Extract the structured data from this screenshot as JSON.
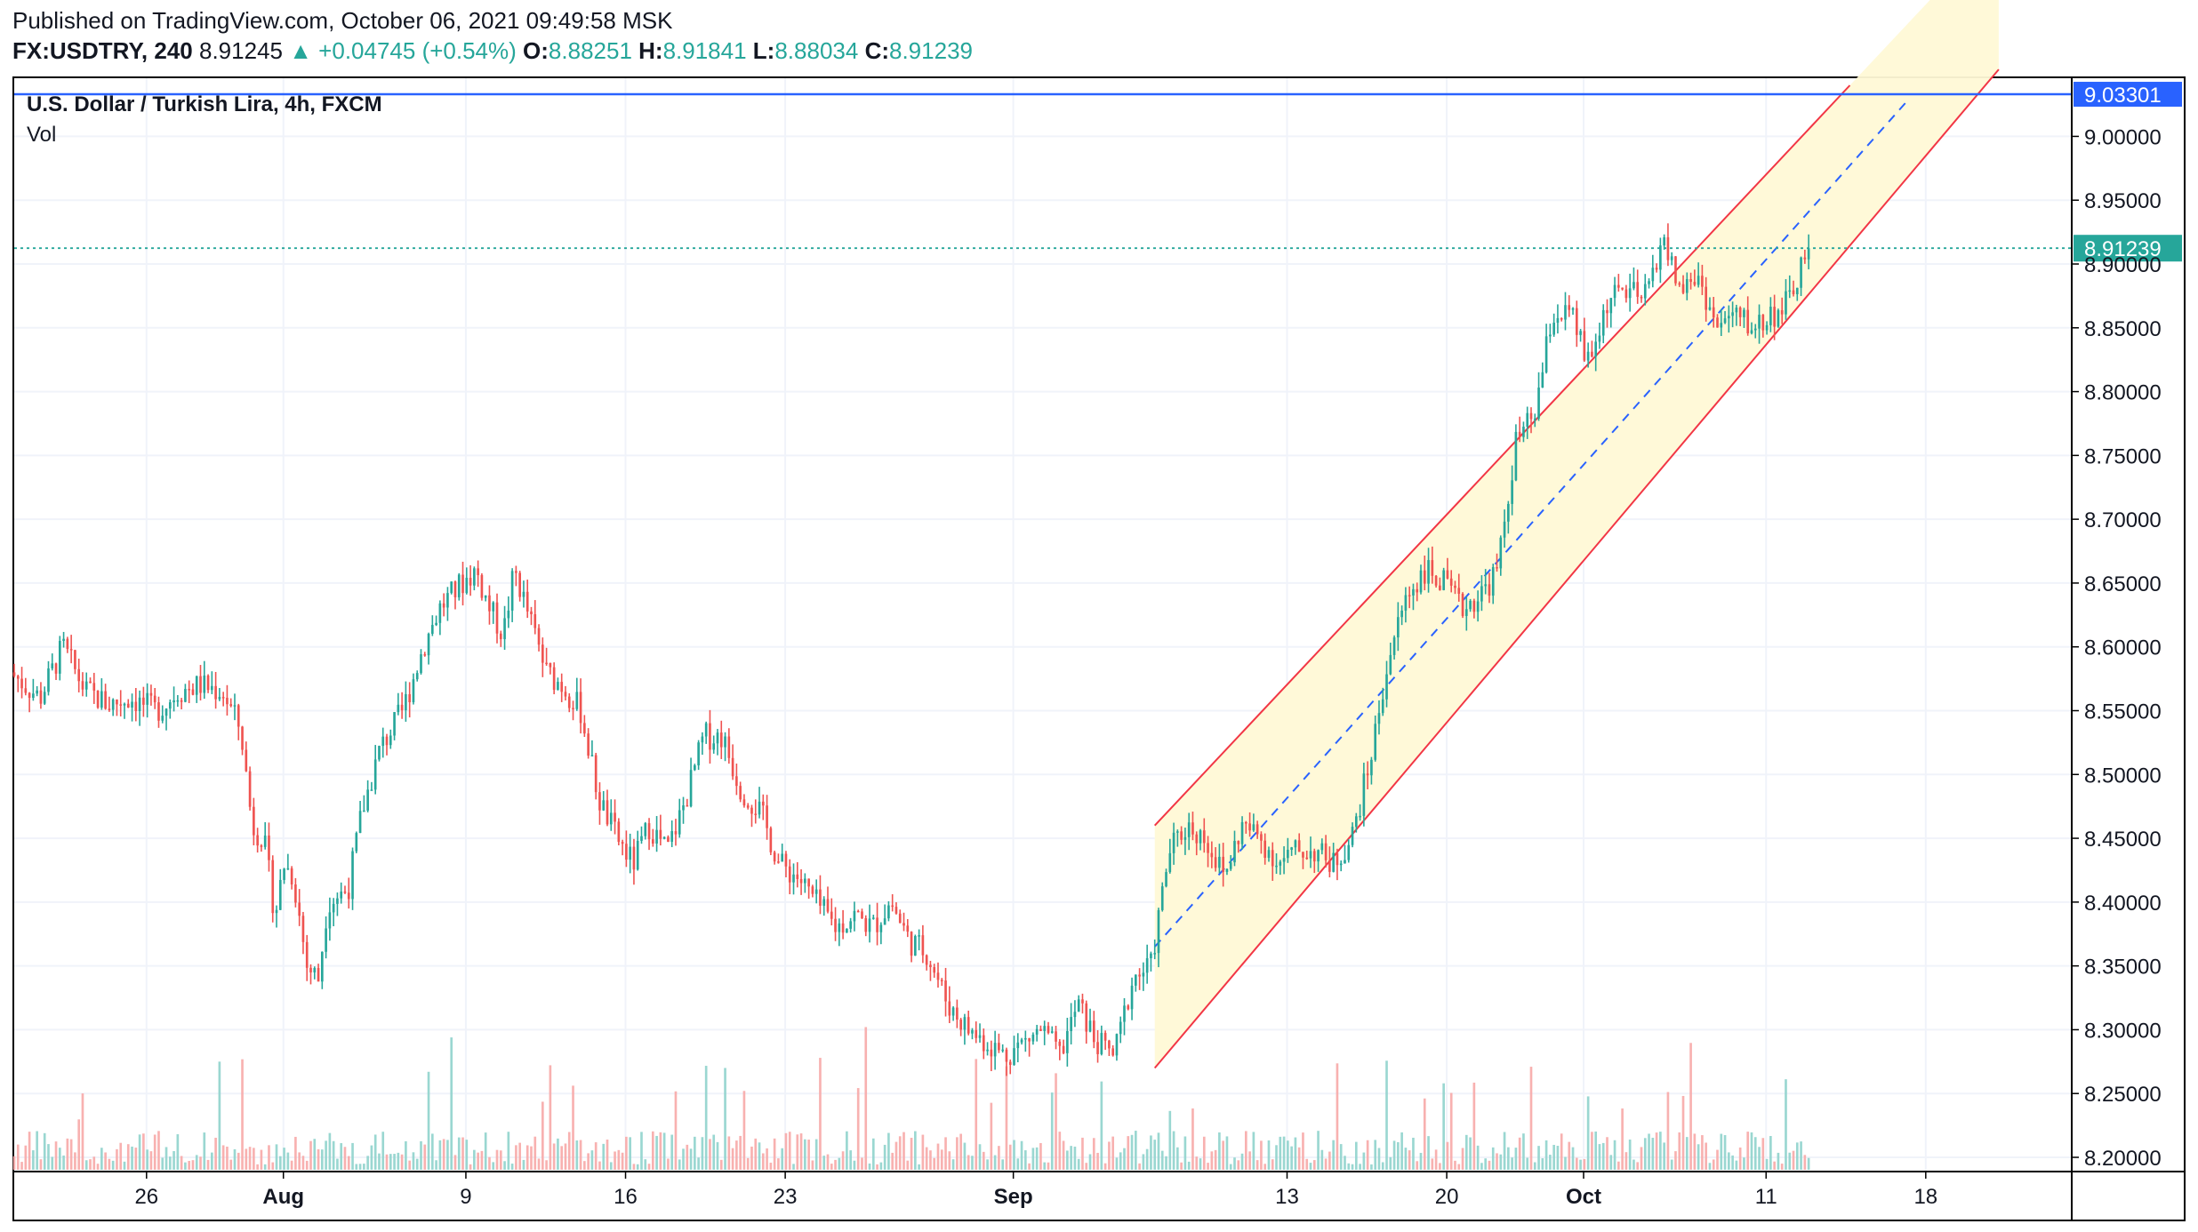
{
  "header": {
    "published": "Published on TradingView.com, October 06, 2021 09:49:58 MSK",
    "symbol": "FX:USDTRY, 240",
    "last": "8.91245",
    "change": "▲ +0.04745 (+0.54%)",
    "o_label": "O:",
    "o_value": "8.88251",
    "h_label": "H:",
    "h_value": "8.91841",
    "l_label": "L:",
    "l_value": "8.88034",
    "c_label": "C:",
    "c_value": "8.91239"
  },
  "legend": {
    "title": "U.S. Dollar / Turkish Lira, 4h, FXCM",
    "volume": "Vol"
  },
  "colors": {
    "up": "#26a69a",
    "down": "#ef5350",
    "channel": "#f23645",
    "median": "#2962ff",
    "fill": "#fff9d6",
    "alert": "#2962ff",
    "last": "#26a69a"
  },
  "chart_data": {
    "type": "candlestick",
    "y_axis": {
      "min": 8.2,
      "max": 9.04,
      "ticks": [
        "8.20000",
        "8.25000",
        "8.30000",
        "8.35000",
        "8.40000",
        "8.45000",
        "8.50000",
        "8.55000",
        "8.60000",
        "8.65000",
        "8.70000",
        "8.75000",
        "8.80000",
        "8.85000",
        "8.90000",
        "8.95000",
        "9.00000"
      ],
      "position": "right"
    },
    "x_axis": {
      "ticks": [
        {
          "label": "26",
          "day": 0
        },
        {
          "label": "Aug",
          "day": 6
        },
        {
          "label": "9",
          "day": 14
        },
        {
          "label": "16",
          "day": 21
        },
        {
          "label": "23",
          "day": 28
        },
        {
          "label": "Sep",
          "day": 38
        },
        {
          "label": "13",
          "day": 50
        },
        {
          "label": "20",
          "day": 57
        },
        {
          "label": "Oct",
          "day": 63
        },
        {
          "label": "11",
          "day": 71
        },
        {
          "label": "18",
          "day": 78
        }
      ],
      "start_date": "2021-07-26",
      "domain_days": [
        -5.8,
        84.4
      ]
    },
    "price_path": [
      [
        -5.8,
        8.58
      ],
      [
        -4.5,
        8.56
      ],
      [
        -3.5,
        8.6
      ],
      [
        -2.5,
        8.565
      ],
      [
        -1.5,
        8.555
      ],
      [
        -0.5,
        8.56
      ],
      [
        0.5,
        8.55
      ],
      [
        1.0,
        8.555
      ],
      [
        1.5,
        8.565
      ],
      [
        2.5,
        8.57
      ],
      [
        3.5,
        8.565
      ],
      [
        4.3,
        8.535
      ],
      [
        4.8,
        8.46
      ],
      [
        5.3,
        8.45
      ],
      [
        5.8,
        8.39
      ],
      [
        6.2,
        8.43
      ],
      [
        6.6,
        8.42
      ],
      [
        7.2,
        8.35
      ],
      [
        7.7,
        8.34
      ],
      [
        8.1,
        8.4
      ],
      [
        9.0,
        8.41
      ],
      [
        9.6,
        8.47
      ],
      [
        10.4,
        8.52
      ],
      [
        11.4,
        8.55
      ],
      [
        12.3,
        8.6
      ],
      [
        13.0,
        8.63
      ],
      [
        14.0,
        8.65
      ],
      [
        14.6,
        8.66
      ],
      [
        15.2,
        8.63
      ],
      [
        15.8,
        8.61
      ],
      [
        16.3,
        8.66
      ],
      [
        17.0,
        8.62
      ],
      [
        17.7,
        8.58
      ],
      [
        18.4,
        8.57
      ],
      [
        19.2,
        8.55
      ],
      [
        20.0,
        8.48
      ],
      [
        20.8,
        8.45
      ],
      [
        21.5,
        8.43
      ],
      [
        22.2,
        8.46
      ],
      [
        23.0,
        8.44
      ],
      [
        23.8,
        8.48
      ],
      [
        24.6,
        8.53
      ],
      [
        25.4,
        8.53
      ],
      [
        26.2,
        8.49
      ],
      [
        27.1,
        8.47
      ],
      [
        27.9,
        8.43
      ],
      [
        28.7,
        8.42
      ],
      [
        29.5,
        8.4
      ],
      [
        30.4,
        8.38
      ],
      [
        31.2,
        8.39
      ],
      [
        32.0,
        8.38
      ],
      [
        32.8,
        8.4
      ],
      [
        33.6,
        8.37
      ],
      [
        34.4,
        8.36
      ],
      [
        35.3,
        8.32
      ],
      [
        36.2,
        8.3
      ],
      [
        37.0,
        8.29
      ],
      [
        37.8,
        8.28
      ],
      [
        38.6,
        8.29
      ],
      [
        39.4,
        8.3
      ],
      [
        40.2,
        8.28
      ],
      [
        41.0,
        8.32
      ],
      [
        41.8,
        8.29
      ],
      [
        42.6,
        8.28
      ],
      [
        43.4,
        8.34
      ],
      [
        44.2,
        8.35
      ],
      [
        45.0,
        8.44
      ],
      [
        45.8,
        8.46
      ],
      [
        46.6,
        8.45
      ],
      [
        47.4,
        8.42
      ],
      [
        48.2,
        8.46
      ],
      [
        49.0,
        8.45
      ],
      [
        49.8,
        8.43
      ],
      [
        50.6,
        8.44
      ],
      [
        51.4,
        8.44
      ],
      [
        52.2,
        8.43
      ],
      [
        53.0,
        8.45
      ],
      [
        53.8,
        8.51
      ],
      [
        54.6,
        8.59
      ],
      [
        55.4,
        8.64
      ],
      [
        56.2,
        8.66
      ],
      [
        57.0,
        8.65
      ],
      [
        57.8,
        8.63
      ],
      [
        58.6,
        8.64
      ],
      [
        59.4,
        8.66
      ],
      [
        60.2,
        8.76
      ],
      [
        61.0,
        8.78
      ],
      [
        61.8,
        8.86
      ],
      [
        62.6,
        8.86
      ],
      [
        63.4,
        8.82
      ],
      [
        64.2,
        8.87
      ],
      [
        65.0,
        8.88
      ],
      [
        65.8,
        8.87
      ],
      [
        66.6,
        8.92
      ],
      [
        67.4,
        8.88
      ],
      [
        68.2,
        8.89
      ],
      [
        69.0,
        8.85
      ],
      [
        69.8,
        8.86
      ],
      [
        70.6,
        8.85
      ],
      [
        71.4,
        8.86
      ],
      [
        72.2,
        8.87
      ],
      [
        72.9,
        8.91
      ]
    ],
    "channel": {
      "start_day": 44.2,
      "end_day": 77.3,
      "upper": [
        8.46,
        9.09
      ],
      "lower": [
        8.27,
        8.97
      ],
      "median": [
        8.365,
        9.03
      ],
      "fill_end_day": 81.2
    },
    "horizontal_alert": {
      "value": 9.03301,
      "label": "9.03301"
    },
    "last_price": {
      "value": 8.91239,
      "label": "8.91239"
    }
  }
}
